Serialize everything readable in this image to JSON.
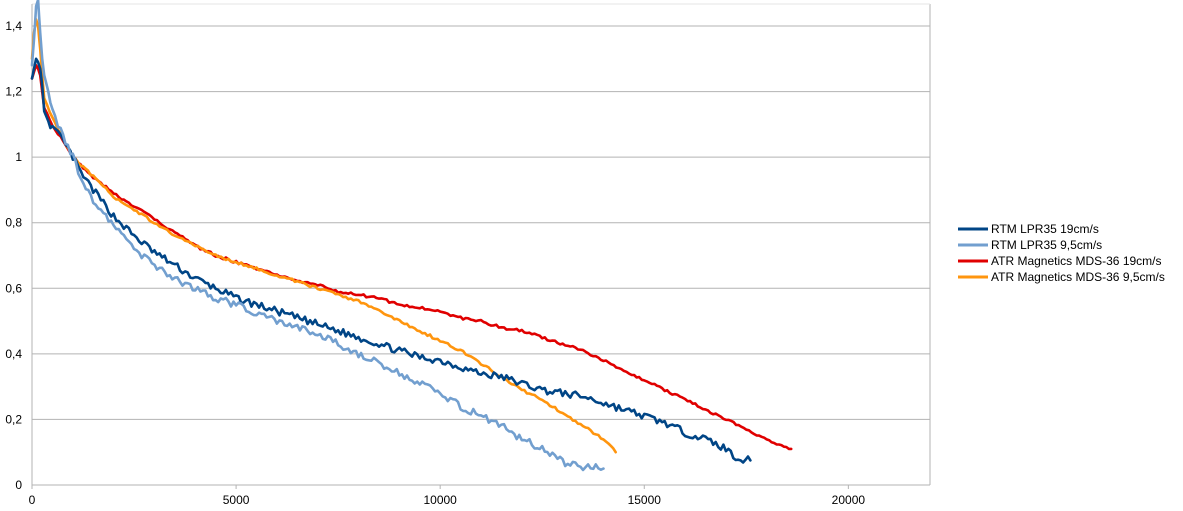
{
  "chart_data": {
    "type": "line",
    "title": "",
    "xlabel": "",
    "ylabel": "",
    "xlim": [
      0,
      22000
    ],
    "ylim": [
      0,
      1.4
    ],
    "x_ticks": [
      "0",
      "5000",
      "10000",
      "15000",
      "20000"
    ],
    "y_ticks": [
      "0",
      "0,2",
      "0,4",
      "0,6",
      "0,8",
      "1",
      "1,2",
      "1,4"
    ],
    "grid": "horizontal",
    "legend_position": "right",
    "series": [
      {
        "name": "RTM LPR35 19cm/s",
        "color": "#004586",
        "x": [
          0,
          50,
          100,
          150,
          200,
          250,
          300,
          400,
          500,
          700,
          1000,
          1200,
          1500,
          2000,
          2500,
          3000,
          3500,
          4000,
          4500,
          5000,
          5500,
          6000,
          6500,
          7000,
          7500,
          8000,
          8500,
          9000,
          9500,
          10000,
          10500,
          11000,
          11500,
          12000,
          12500,
          13000,
          13500,
          14000,
          14500,
          15000,
          15500,
          16000,
          16500,
          17000,
          17300,
          17600
        ],
        "y": [
          1.24,
          1.27,
          1.3,
          1.29,
          1.27,
          1.22,
          1.14,
          1.11,
          1.09,
          1.06,
          1.0,
          0.95,
          0.9,
          0.82,
          0.76,
          0.71,
          0.67,
          0.63,
          0.6,
          0.57,
          0.55,
          0.53,
          0.51,
          0.49,
          0.47,
          0.45,
          0.43,
          0.41,
          0.39,
          0.38,
          0.36,
          0.34,
          0.33,
          0.31,
          0.29,
          0.28,
          0.27,
          0.25,
          0.23,
          0.21,
          0.19,
          0.16,
          0.14,
          0.11,
          0.08,
          0.075
        ]
      },
      {
        "name": "RTM LPR35 9,5cm/s",
        "color": "#729fcf",
        "x": [
          0,
          50,
          100,
          150,
          200,
          250,
          300,
          400,
          500,
          700,
          1000,
          1200,
          1500,
          2000,
          2500,
          3000,
          3500,
          4000,
          4500,
          5000,
          5500,
          6000,
          6500,
          7000,
          7500,
          8000,
          8500,
          9000,
          9500,
          10000,
          10500,
          11000,
          11500,
          12000,
          12500,
          13000,
          13500,
          14000
        ],
        "y": [
          1.28,
          1.36,
          1.46,
          1.48,
          1.38,
          1.3,
          1.25,
          1.2,
          1.15,
          1.08,
          1.0,
          0.94,
          0.87,
          0.79,
          0.72,
          0.67,
          0.63,
          0.6,
          0.57,
          0.55,
          0.52,
          0.5,
          0.48,
          0.46,
          0.43,
          0.4,
          0.37,
          0.34,
          0.31,
          0.28,
          0.24,
          0.21,
          0.18,
          0.14,
          0.11,
          0.07,
          0.055,
          0.05
        ]
      },
      {
        "name": "ATR Magnetics MDS-36 19cm/s",
        "color": "#e00000",
        "x": [
          0,
          50,
          100,
          150,
          200,
          250,
          300,
          500,
          700,
          1000,
          1500,
          2000,
          2500,
          3000,
          3500,
          4000,
          4500,
          5000,
          5500,
          6000,
          6500,
          7000,
          7500,
          8000,
          8500,
          9000,
          9500,
          10000,
          10500,
          11000,
          11500,
          12000,
          12500,
          13000,
          13500,
          14000,
          14500,
          15000,
          15500,
          16000,
          16500,
          17000,
          17500,
          18000,
          18300,
          18600
        ],
        "y": [
          1.24,
          1.26,
          1.28,
          1.27,
          1.25,
          1.2,
          1.15,
          1.1,
          1.06,
          1.0,
          0.94,
          0.89,
          0.85,
          0.81,
          0.77,
          0.73,
          0.7,
          0.68,
          0.66,
          0.64,
          0.62,
          0.61,
          0.59,
          0.58,
          0.57,
          0.55,
          0.54,
          0.53,
          0.51,
          0.5,
          0.48,
          0.47,
          0.45,
          0.43,
          0.41,
          0.38,
          0.35,
          0.32,
          0.29,
          0.26,
          0.23,
          0.2,
          0.17,
          0.14,
          0.12,
          0.11
        ]
      },
      {
        "name": "ATR Magnetics MDS-36 9,5cm/s",
        "color": "#ff950e",
        "x": [
          0,
          50,
          100,
          150,
          200,
          250,
          300,
          500,
          700,
          1000,
          1500,
          2000,
          2500,
          3000,
          3500,
          4000,
          4500,
          5000,
          5500,
          6000,
          6500,
          7000,
          7500,
          8000,
          8500,
          9000,
          9500,
          10000,
          10500,
          11000,
          11500,
          12000,
          12500,
          13000,
          13500,
          14000,
          14300
        ],
        "y": [
          1.3,
          1.38,
          1.42,
          1.4,
          1.33,
          1.25,
          1.18,
          1.12,
          1.07,
          1.0,
          0.94,
          0.88,
          0.84,
          0.8,
          0.76,
          0.73,
          0.7,
          0.68,
          0.66,
          0.64,
          0.62,
          0.6,
          0.58,
          0.56,
          0.53,
          0.5,
          0.47,
          0.44,
          0.41,
          0.37,
          0.33,
          0.29,
          0.26,
          0.22,
          0.18,
          0.14,
          0.1
        ]
      }
    ]
  }
}
